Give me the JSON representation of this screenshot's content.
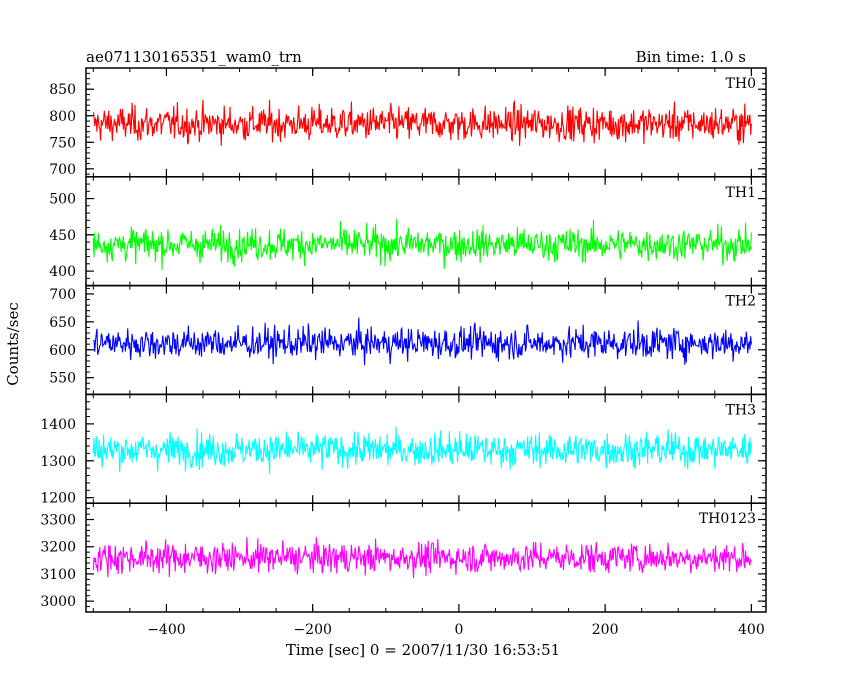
{
  "chart_data": {
    "type": "line",
    "title": "ae071130165351_wam0_trn",
    "bin_time_label": "Bin time: 1.0 s",
    "xlabel": "Time [sec] 0 = 2007/11/30 16:53:51",
    "ylabel": "Counts/sec",
    "xlim": [
      -510,
      420
    ],
    "x_ticks": [
      -400,
      -200,
      0,
      200,
      400
    ],
    "x_tick_labels": [
      "−400",
      "−200",
      "0",
      "200",
      "400"
    ],
    "x_range": [
      -500,
      400
    ],
    "grid": false,
    "panels": [
      {
        "name": "TH0",
        "color": "#ff0000",
        "ylim": [
          685,
          890
        ],
        "ticks": [
          700,
          750,
          800,
          850
        ],
        "tick_labels": [
          "700",
          "750",
          "800",
          "850"
        ],
        "mean": 785,
        "spread": 32
      },
      {
        "name": "TH1",
        "color": "#00ff00",
        "ylim": [
          380,
          530
        ],
        "ticks": [
          400,
          450,
          500
        ],
        "tick_labels": [
          "400",
          "450",
          "500"
        ],
        "mean": 437,
        "spread": 22
      },
      {
        "name": "TH2",
        "color": "#0000ff",
        "ylim": [
          520,
          715
        ],
        "ticks": [
          550,
          600,
          650,
          700
        ],
        "tick_labels": [
          "550",
          "600",
          "650",
          "700"
        ],
        "mean": 612,
        "spread": 28
      },
      {
        "name": "TH3",
        "color": "#00ffff",
        "ylim": [
          1185,
          1480
        ],
        "ticks": [
          1200,
          1300,
          1400
        ],
        "tick_labels": [
          "1200",
          "1300",
          "1400"
        ],
        "mean": 1330,
        "spread": 45
      },
      {
        "name": "TH0123",
        "color": "#ff00ff",
        "ylim": [
          2960,
          3360
        ],
        "ticks": [
          3000,
          3100,
          3200,
          3300
        ],
        "tick_labels": [
          "3000",
          "3100",
          "3200",
          "3300"
        ],
        "mean": 3160,
        "spread": 55
      }
    ]
  }
}
